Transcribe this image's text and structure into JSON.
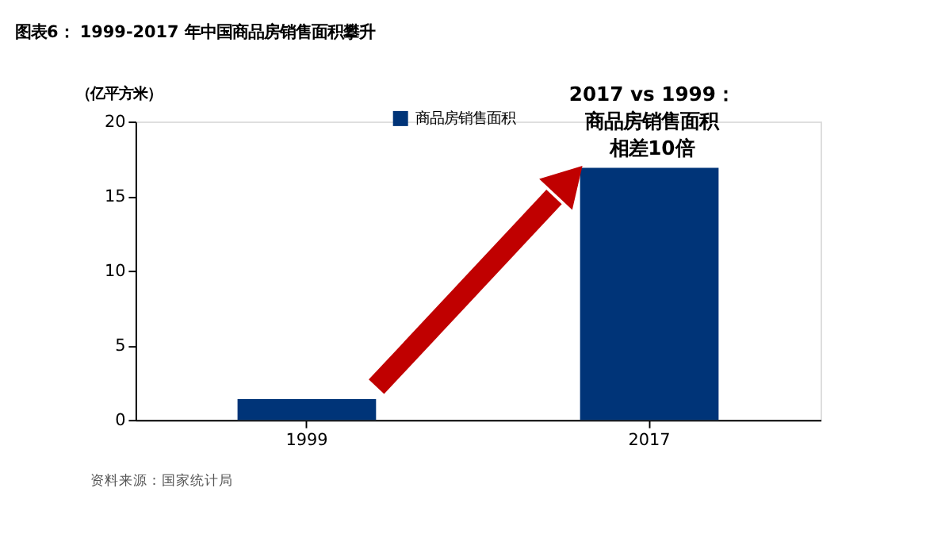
{
  "chart_data": {
    "type": "bar",
    "title": "图表6： 1999-2017 年中国商品房销售面积攀升",
    "ylabel": "（亿平方米）",
    "categories": [
      "1999",
      "2017"
    ],
    "series": [
      {
        "name": "商品房销售面积",
        "color": "#003478",
        "values": [
          1.4,
          16.9
        ]
      }
    ],
    "ylim": [
      0,
      20
    ],
    "yticks": [
      0,
      5,
      10,
      15,
      20
    ],
    "grid": false,
    "legend": "top left",
    "annotations": [
      "2017 vs 1999：",
      "商品房销售面积",
      "相差10倍",
      "资料来源：国家统计局"
    ]
  }
}
